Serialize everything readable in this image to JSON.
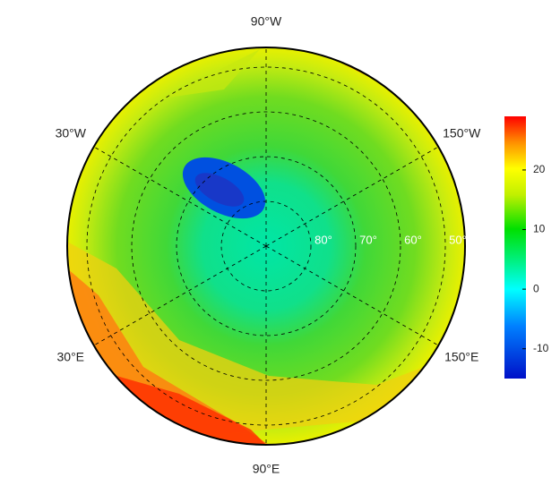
{
  "map": {
    "longitude_labels": [
      {
        "value": -90,
        "label": "90°W"
      },
      {
        "value": -30,
        "label": "30°W"
      },
      {
        "value": -150,
        "label": "150°W"
      },
      {
        "value": 30,
        "label": "30°E"
      },
      {
        "value": 150,
        "label": "150°E"
      },
      {
        "value": 90,
        "label": "90°E"
      }
    ],
    "latitude_labels": [
      {
        "value": 80,
        "label": "80°"
      },
      {
        "value": 70,
        "label": "70°"
      },
      {
        "value": 60,
        "label": "60°"
      },
      {
        "value": 50,
        "label": "50°"
      }
    ],
    "colorbar": {
      "lim": [
        -15,
        29
      ],
      "ticks": [
        -10,
        0,
        10,
        20
      ]
    }
  }
}
